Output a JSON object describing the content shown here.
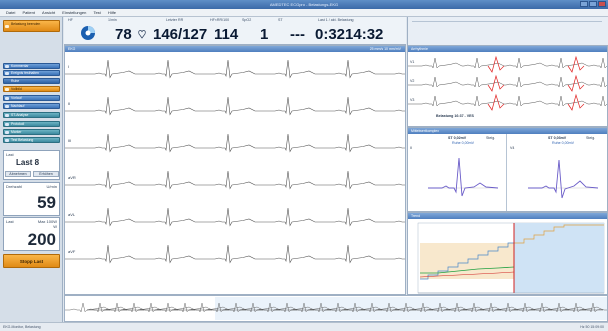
{
  "window": {
    "title": "AMEDTEC ECGpro - Belastungs-EKG"
  },
  "menu": [
    "Datei",
    "Patient",
    "Ansicht",
    "Einstellungen",
    "Test",
    "Hilfe"
  ],
  "sidebar": {
    "primary_button": "Belastung beenden",
    "buttons": [
      "Kommentar",
      "Ereignis festhalten",
      "Ruhe",
      "Vollbild",
      "Vorlauf",
      "Nachlauf",
      "ST-Analyse",
      "Protokoll",
      "Marker",
      "Test Belastung"
    ],
    "load_section": {
      "label": "Last",
      "step_label": "Last 8",
      "dec": "Abnehmen",
      "inc": "Erhöhen"
    },
    "rpm": {
      "label": "Drehzahl",
      "unit": "U/min",
      "value": "59"
    },
    "watt": {
      "label": "Last",
      "unit": "W",
      "max_label": "Max 100W",
      "value": "200"
    },
    "stop_button": "Stopp Last"
  },
  "header": {
    "hr_label": "HF",
    "hr_unit": "1/min",
    "hr_value": "78",
    "bp_label": "Letzter RR",
    "bp_value": "146/127",
    "hr2_label": "HF×RR/100",
    "hr2_value": "114",
    "spo2_label": "SpO2",
    "spo2_value": "1",
    "st_label": "ST",
    "st_value": "---",
    "time_label": "Last 1 / akt. Belastung",
    "time_value": "0:3214:32"
  },
  "ecg": {
    "leads": [
      "I",
      "II",
      "III",
      "aVR",
      "aVL",
      "aVF"
    ],
    "panel_title": "EKG",
    "header_right": "25 mm/s  10 mm/mV"
  },
  "panels": {
    "arrhythmia": {
      "title": "Arrhythmie",
      "caption": "Belastung 16:37 - VES",
      "rows": [
        "V1",
        "V2",
        "V3"
      ]
    },
    "median": {
      "title": "Mittelwertkomplex",
      "left": {
        "lead": "II",
        "st": "ST 0,02mV",
        "slope": "Steig.",
        "ruhe": "Ruhe 0,00mV"
      },
      "right": {
        "lead": "V4",
        "st": "ST 0,03mV",
        "slope": "Steig.",
        "ruhe": "Ruhe 0,00mV"
      }
    },
    "trend": {
      "title": "Trend",
      "subtitle": "Last, Drehzahl, HF, RR, ST Werte"
    }
  },
  "status": {
    "left": "EKG-Monitor, Belastung",
    "right": "Hz 50  15:09:00"
  },
  "colors": {
    "accent": "#3b72b8",
    "selected": "#f0a030",
    "ecg_trace": "#555555",
    "highlight": "#e02020"
  }
}
